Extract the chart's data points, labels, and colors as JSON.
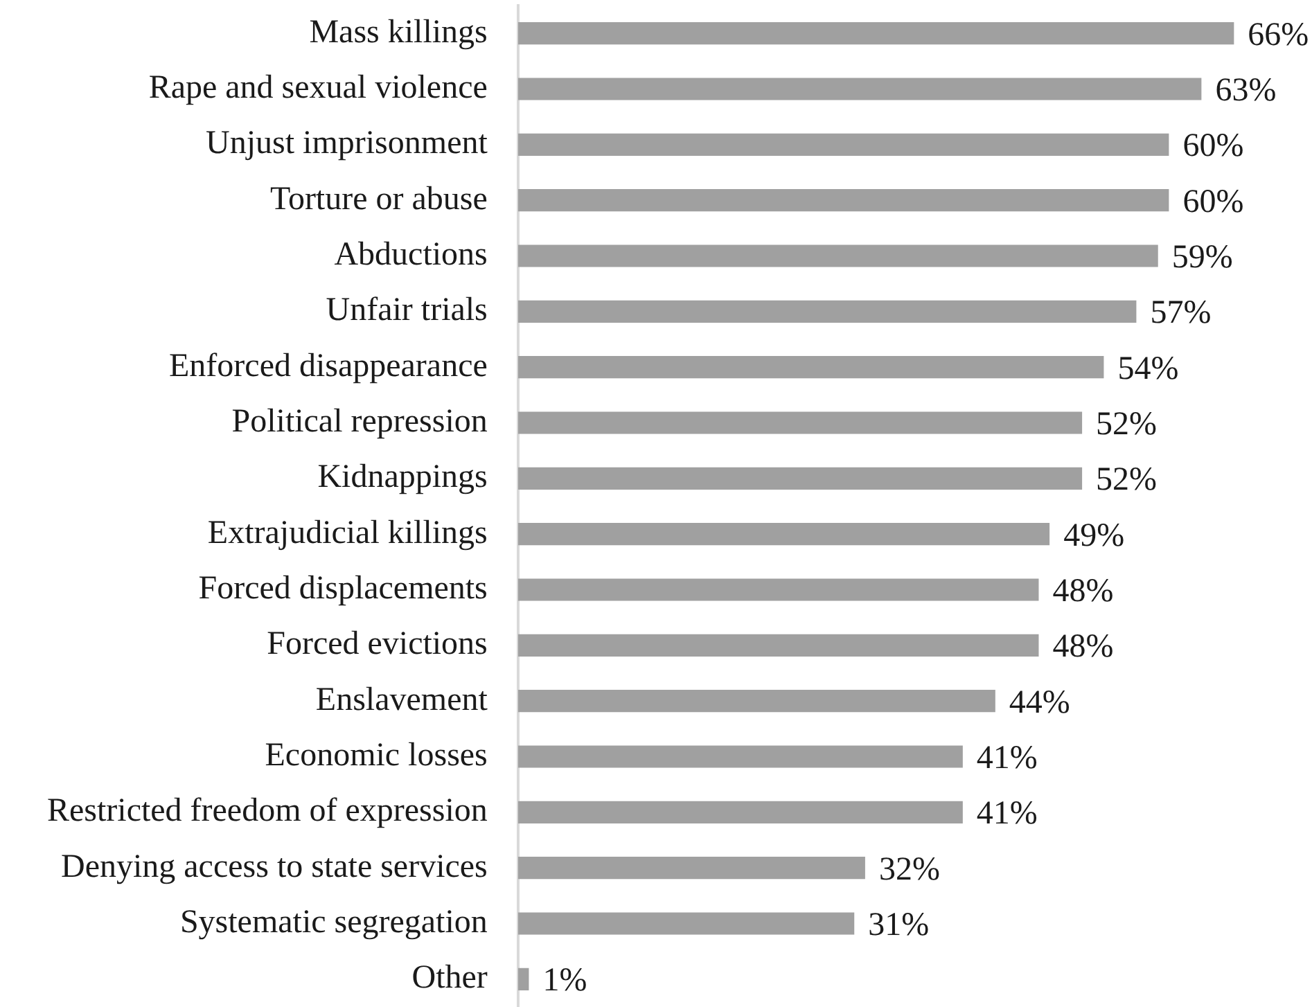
{
  "chart_data": {
    "type": "bar",
    "orientation": "horizontal",
    "categories": [
      "Mass killings",
      "Rape and sexual violence",
      "Unjust imprisonment",
      "Torture or abuse",
      "Abductions",
      "Unfair trials",
      "Enforced disappearance",
      "Political repression",
      "Kidnappings",
      "Extrajudicial killings",
      "Forced displacements",
      "Forced evictions",
      "Enslavement",
      "Economic losses",
      "Restricted freedom of expression",
      "Denying access to state services",
      "Systematic segregation",
      "Other"
    ],
    "values": [
      66,
      63,
      60,
      60,
      59,
      57,
      54,
      52,
      52,
      49,
      48,
      48,
      44,
      41,
      41,
      32,
      31,
      1
    ],
    "value_labels": [
      "66%",
      "63%",
      "60%",
      "60%",
      "59%",
      "57%",
      "54%",
      "52%",
      "52%",
      "49%",
      "48%",
      "48%",
      "44%",
      "41%",
      "41%",
      "32%",
      "31%",
      "1%"
    ],
    "color": "#a0a0a0",
    "grid": false,
    "legend": false,
    "tick_labels": "y"
  }
}
